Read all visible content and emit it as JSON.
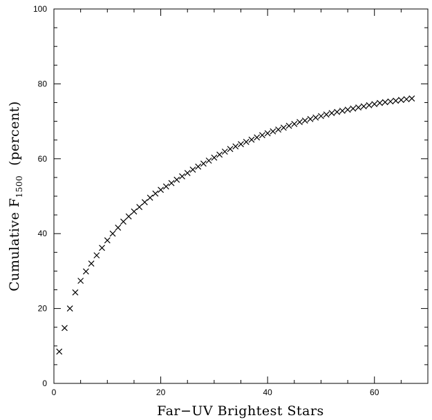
{
  "chart_data": {
    "type": "scatter",
    "marker": "x",
    "xlabel": "Far−UV Brightest Stars",
    "ylabel_main": "Cumulative F",
    "ylabel_sub": "1500",
    "ylabel_unit": "(percent)",
    "xlim": [
      0,
      70
    ],
    "ylim": [
      0,
      100
    ],
    "xticks": [
      0,
      20,
      40,
      60
    ],
    "yticks": [
      0,
      20,
      40,
      60,
      80,
      100
    ],
    "grid": false,
    "series": [
      {
        "x": [
          1,
          2,
          3,
          4,
          5,
          6,
          7,
          8,
          9,
          10,
          11,
          12,
          13,
          14,
          15,
          16,
          17,
          18,
          19,
          20,
          21,
          22,
          23,
          24,
          25,
          26,
          27,
          28,
          29,
          30,
          31,
          32,
          33,
          34,
          35,
          36,
          37,
          38,
          39,
          40,
          41,
          42,
          43,
          44,
          45,
          46,
          47,
          48,
          49,
          50,
          51,
          52,
          53,
          54,
          55,
          56,
          57,
          58,
          59,
          60,
          61,
          62,
          63,
          64,
          65,
          66,
          67
        ],
        "y": [
          8.5,
          14.8,
          20.0,
          24.3,
          27.4,
          29.9,
          32.0,
          34.2,
          36.2,
          38.2,
          40.0,
          41.6,
          43.2,
          44.6,
          45.9,
          47.1,
          48.4,
          49.6,
          50.7,
          51.7,
          52.6,
          53.5,
          54.4,
          55.3,
          56.2,
          57.1,
          57.9,
          58.7,
          59.5,
          60.3,
          61.1,
          61.9,
          62.6,
          63.3,
          63.9,
          64.5,
          65.1,
          65.7,
          66.3,
          66.8,
          67.3,
          67.8,
          68.3,
          68.8,
          69.3,
          69.8,
          70.2,
          70.6,
          71.0,
          71.4,
          71.8,
          72.2,
          72.5,
          72.8,
          73.1,
          73.4,
          73.7,
          74.0,
          74.3,
          74.6,
          74.9,
          75.1,
          75.3,
          75.5,
          75.7,
          75.9,
          76.1
        ]
      }
    ]
  }
}
